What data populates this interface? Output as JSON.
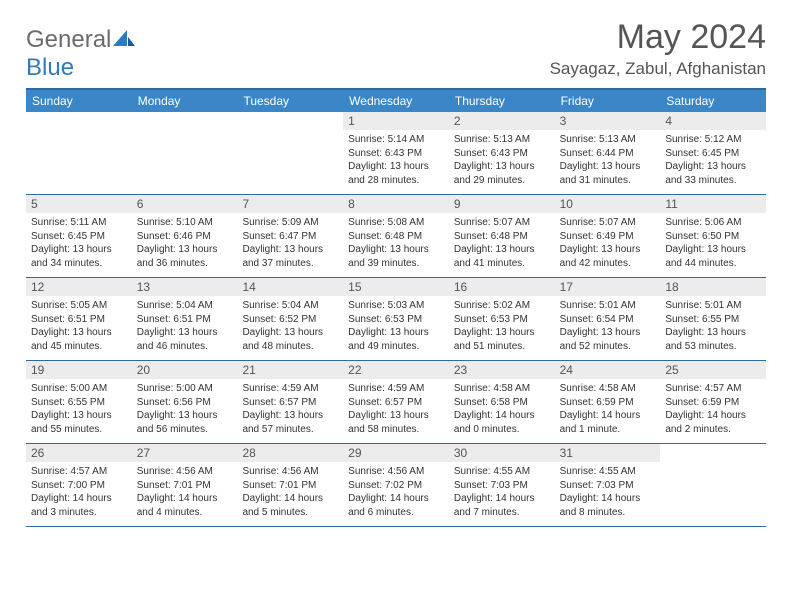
{
  "brand": {
    "text1": "General",
    "text2": "Blue"
  },
  "title": "May 2024",
  "location": "Sayagaz, Zabul, Afghanistan",
  "accent_color": "#3b86c7",
  "border_color": "#2b6aa3",
  "day_num_bg": "#ececec",
  "day_labels": [
    "Sunday",
    "Monday",
    "Tuesday",
    "Wednesday",
    "Thursday",
    "Friday",
    "Saturday"
  ],
  "weeks": [
    [
      null,
      null,
      null,
      {
        "n": "1",
        "sr": "5:14 AM",
        "ss": "6:43 PM",
        "dl": "13 hours and 28 minutes."
      },
      {
        "n": "2",
        "sr": "5:13 AM",
        "ss": "6:43 PM",
        "dl": "13 hours and 29 minutes."
      },
      {
        "n": "3",
        "sr": "5:13 AM",
        "ss": "6:44 PM",
        "dl": "13 hours and 31 minutes."
      },
      {
        "n": "4",
        "sr": "5:12 AM",
        "ss": "6:45 PM",
        "dl": "13 hours and 33 minutes."
      }
    ],
    [
      {
        "n": "5",
        "sr": "5:11 AM",
        "ss": "6:45 PM",
        "dl": "13 hours and 34 minutes."
      },
      {
        "n": "6",
        "sr": "5:10 AM",
        "ss": "6:46 PM",
        "dl": "13 hours and 36 minutes."
      },
      {
        "n": "7",
        "sr": "5:09 AM",
        "ss": "6:47 PM",
        "dl": "13 hours and 37 minutes."
      },
      {
        "n": "8",
        "sr": "5:08 AM",
        "ss": "6:48 PM",
        "dl": "13 hours and 39 minutes."
      },
      {
        "n": "9",
        "sr": "5:07 AM",
        "ss": "6:48 PM",
        "dl": "13 hours and 41 minutes."
      },
      {
        "n": "10",
        "sr": "5:07 AM",
        "ss": "6:49 PM",
        "dl": "13 hours and 42 minutes."
      },
      {
        "n": "11",
        "sr": "5:06 AM",
        "ss": "6:50 PM",
        "dl": "13 hours and 44 minutes."
      }
    ],
    [
      {
        "n": "12",
        "sr": "5:05 AM",
        "ss": "6:51 PM",
        "dl": "13 hours and 45 minutes."
      },
      {
        "n": "13",
        "sr": "5:04 AM",
        "ss": "6:51 PM",
        "dl": "13 hours and 46 minutes."
      },
      {
        "n": "14",
        "sr": "5:04 AM",
        "ss": "6:52 PM",
        "dl": "13 hours and 48 minutes."
      },
      {
        "n": "15",
        "sr": "5:03 AM",
        "ss": "6:53 PM",
        "dl": "13 hours and 49 minutes."
      },
      {
        "n": "16",
        "sr": "5:02 AM",
        "ss": "6:53 PM",
        "dl": "13 hours and 51 minutes."
      },
      {
        "n": "17",
        "sr": "5:01 AM",
        "ss": "6:54 PM",
        "dl": "13 hours and 52 minutes."
      },
      {
        "n": "18",
        "sr": "5:01 AM",
        "ss": "6:55 PM",
        "dl": "13 hours and 53 minutes."
      }
    ],
    [
      {
        "n": "19",
        "sr": "5:00 AM",
        "ss": "6:55 PM",
        "dl": "13 hours and 55 minutes."
      },
      {
        "n": "20",
        "sr": "5:00 AM",
        "ss": "6:56 PM",
        "dl": "13 hours and 56 minutes."
      },
      {
        "n": "21",
        "sr": "4:59 AM",
        "ss": "6:57 PM",
        "dl": "13 hours and 57 minutes."
      },
      {
        "n": "22",
        "sr": "4:59 AM",
        "ss": "6:57 PM",
        "dl": "13 hours and 58 minutes."
      },
      {
        "n": "23",
        "sr": "4:58 AM",
        "ss": "6:58 PM",
        "dl": "14 hours and 0 minutes."
      },
      {
        "n": "24",
        "sr": "4:58 AM",
        "ss": "6:59 PM",
        "dl": "14 hours and 1 minute."
      },
      {
        "n": "25",
        "sr": "4:57 AM",
        "ss": "6:59 PM",
        "dl": "14 hours and 2 minutes."
      }
    ],
    [
      {
        "n": "26",
        "sr": "4:57 AM",
        "ss": "7:00 PM",
        "dl": "14 hours and 3 minutes."
      },
      {
        "n": "27",
        "sr": "4:56 AM",
        "ss": "7:01 PM",
        "dl": "14 hours and 4 minutes."
      },
      {
        "n": "28",
        "sr": "4:56 AM",
        "ss": "7:01 PM",
        "dl": "14 hours and 5 minutes."
      },
      {
        "n": "29",
        "sr": "4:56 AM",
        "ss": "7:02 PM",
        "dl": "14 hours and 6 minutes."
      },
      {
        "n": "30",
        "sr": "4:55 AM",
        "ss": "7:03 PM",
        "dl": "14 hours and 7 minutes."
      },
      {
        "n": "31",
        "sr": "4:55 AM",
        "ss": "7:03 PM",
        "dl": "14 hours and 8 minutes."
      },
      null
    ]
  ]
}
